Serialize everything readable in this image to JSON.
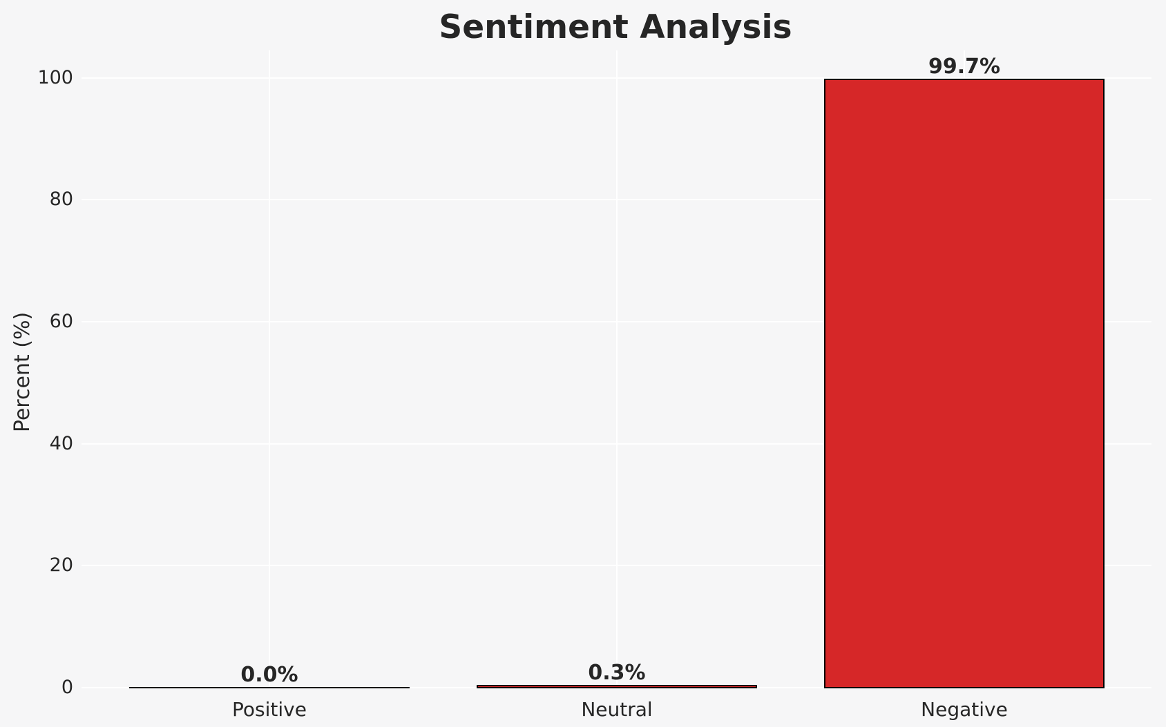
{
  "chart_data": {
    "type": "bar",
    "title": "Sentiment Analysis",
    "xlabel": "",
    "ylabel": "Percent (%)",
    "categories": [
      "Positive",
      "Neutral",
      "Negative"
    ],
    "values": [
      0.0,
      0.3,
      99.7
    ],
    "value_labels": [
      "0.0%",
      "0.3%",
      "99.7%"
    ],
    "yticks": [
      0,
      20,
      40,
      60,
      80,
      100
    ],
    "ytick_labels": [
      "0",
      "20",
      "40",
      "60",
      "80",
      "100"
    ],
    "ylim": [
      0,
      104.5
    ],
    "grid": true,
    "legend_position": "none",
    "colors": {
      "bar_fill": "#d62728",
      "bar_edge": "#000000",
      "background": "#f6f6f7",
      "gridline": "#ffffff",
      "text": "#262626"
    }
  }
}
